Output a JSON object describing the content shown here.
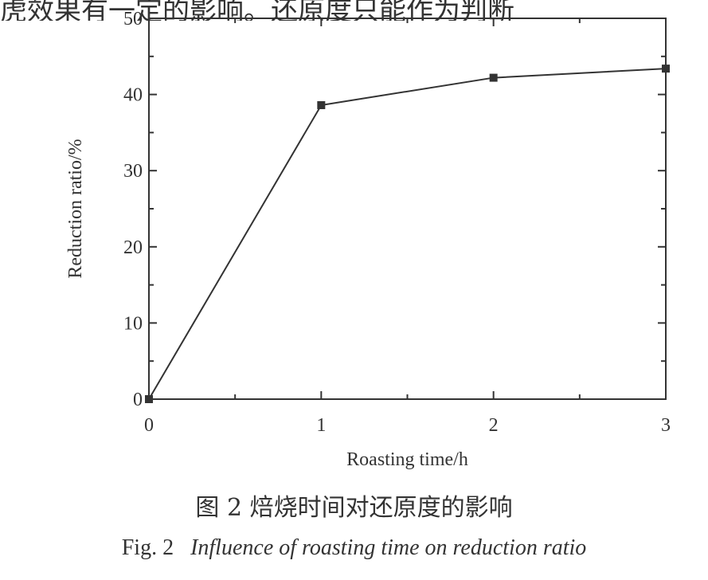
{
  "top_text_fragment": "虎效果有一定的影响。还原度只能作为判断",
  "caption_cn": "图 2   焙烧时间对还原度的影响",
  "caption_en_prefix": "Fig. 2",
  "caption_en_title": "Influence of roasting time on reduction ratio",
  "chart_data": {
    "type": "line",
    "title": "",
    "xlabel": "Roasting time/h",
    "ylabel": "Reduction ratio/%",
    "xlim": [
      0,
      3
    ],
    "ylim": [
      0,
      50
    ],
    "xticks": [
      0,
      1,
      2,
      3
    ],
    "yticks": [
      0,
      10,
      20,
      30,
      40,
      50
    ],
    "grid": false,
    "marker": "square",
    "series": [
      {
        "x": [
          0,
          1,
          2,
          3
        ],
        "y": [
          0,
          38.6,
          42.2,
          43.4
        ]
      }
    ]
  }
}
